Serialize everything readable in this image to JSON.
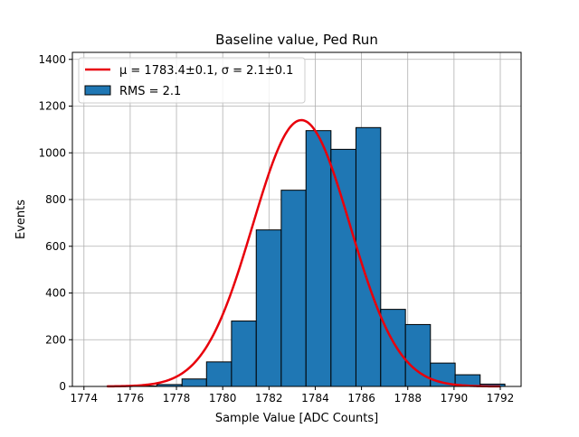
{
  "chart_data": {
    "type": "bar",
    "title": "Baseline value, Ped Run",
    "xlabel": "Sample Value [ADC Counts]",
    "ylabel": "Events",
    "xlim": [
      1773.5,
      1792.9
    ],
    "ylim": [
      0,
      1430
    ],
    "xticks": [
      1774,
      1776,
      1778,
      1780,
      1782,
      1784,
      1786,
      1788,
      1790,
      1792
    ],
    "yticks": [
      0,
      200,
      400,
      600,
      800,
      1000,
      1200,
      1400
    ],
    "grid": true,
    "bin_edges": [
      1775,
      1776.08,
      1777.15,
      1778.24,
      1779.3,
      1780.38,
      1781.45,
      1782.53,
      1783.6,
      1784.68,
      1785.76,
      1786.83,
      1787.9,
      1788.98,
      1790.05,
      1791.13,
      1792.2
    ],
    "counts": [
      1,
      2,
      8,
      32,
      105,
      280,
      670,
      840,
      1095,
      1015,
      1108,
      330,
      265,
      100,
      50,
      10
    ],
    "histogram_label": "RMS = 2.1",
    "fit": {
      "mu": 1783.4,
      "sigma": 2.1,
      "amplitude": 1140,
      "x_range": [
        1775,
        1792
      ],
      "label": "μ = 1783.4±0.1, σ = 2.1±0.1",
      "color": "#e8000b"
    },
    "bar_color": "#1f77b4",
    "bar_edge_color": "#000000",
    "legend_position": "upper-left"
  }
}
